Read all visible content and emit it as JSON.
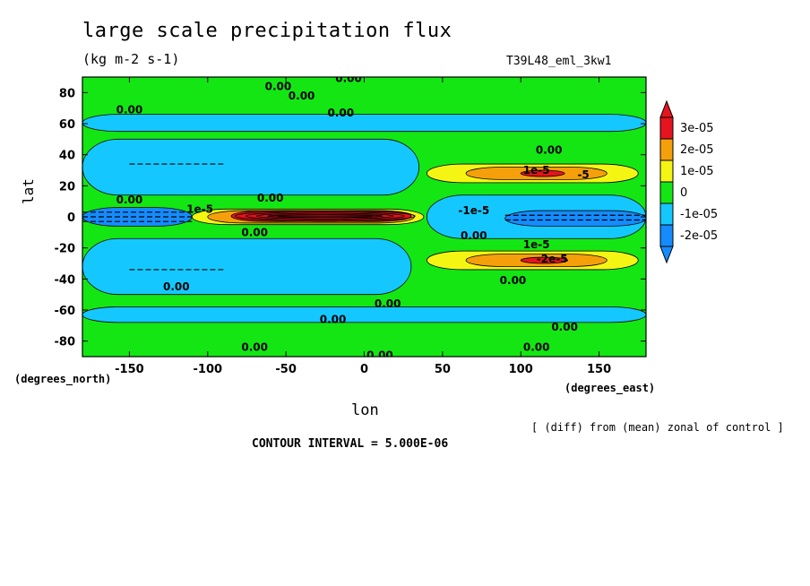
{
  "chart_data": {
    "type": "heatmap",
    "title": "large scale precipitation flux",
    "units": "(kg m-2 s-1)",
    "experiment": "T39L48_eml_3kw1",
    "xlabel": "lon",
    "ylabel": "lat",
    "x_units": "(degrees_east)",
    "y_units": "(degrees_north)",
    "xlim": [
      -180,
      180
    ],
    "ylim": [
      -90,
      90
    ],
    "x_ticks": [
      "-150",
      "-100",
      "-50",
      "0",
      "50",
      "100",
      "150"
    ],
    "x_tick_values": [
      -150,
      -100,
      -50,
      0,
      50,
      100,
      150
    ],
    "y_ticks": [
      "80",
      "60",
      "40",
      "20",
      "0",
      "-20",
      "-40",
      "-60",
      "-80"
    ],
    "y_tick_values": [
      80,
      60,
      40,
      20,
      0,
      -20,
      -40,
      -60,
      -80
    ],
    "diff_note": "[ (diff) from (mean) zonal of control ]",
    "contour_interval": "CONTOUR INTERVAL = 5.000E-06",
    "colorbar": {
      "labels": [
        "3e-05",
        "2e-05",
        "1e-05",
        "0",
        "-1e-05",
        "-2e-05"
      ],
      "levels": [
        3e-05,
        2e-05,
        1e-05,
        0,
        -1e-05,
        -2e-05
      ],
      "colors": [
        "#e6141e",
        "#f5a00a",
        "#f5f514",
        "#14e614",
        "#14c8ff",
        "#148cff"
      ]
    },
    "field_colors": {
      "green": "#14e614",
      "lightblue": "#14c8ff",
      "blue": "#148cff",
      "yellow": "#f5f514",
      "orange": "#f5a00a",
      "red": "#e6141e"
    },
    "regions": [
      {
        "level": "lightblue",
        "lon": [
          -180,
          180
        ],
        "lat": [
          -68,
          -58
        ]
      },
      {
        "level": "lightblue",
        "lon": [
          -180,
          30
        ],
        "lat": [
          -50,
          -14
        ]
      },
      {
        "level": "lightblue",
        "lon": [
          -180,
          35
        ],
        "lat": [
          14,
          50
        ]
      },
      {
        "level": "lightblue",
        "lon": [
          -180,
          180
        ],
        "lat": [
          55,
          66
        ]
      },
      {
        "level": "lightblue",
        "lon": [
          40,
          180
        ],
        "lat": [
          -14,
          14
        ]
      },
      {
        "level": "blue",
        "lon": [
          -180,
          -110
        ],
        "lat": [
          -6,
          6
        ]
      },
      {
        "level": "blue",
        "lon": [
          90,
          180
        ],
        "lat": [
          -6,
          4
        ]
      },
      {
        "level": "yellow",
        "lon": [
          -110,
          38
        ],
        "lat": [
          -5,
          5
        ]
      },
      {
        "level": "orange",
        "lon": [
          -100,
          32
        ],
        "lat": [
          -4,
          4
        ]
      },
      {
        "level": "red",
        "lon": [
          -85,
          30
        ],
        "lat": [
          -3,
          4
        ]
      },
      {
        "level": "yellow",
        "lon": [
          40,
          175
        ],
        "lat": [
          22,
          34
        ]
      },
      {
        "level": "orange",
        "lon": [
          65,
          155
        ],
        "lat": [
          24,
          32
        ]
      },
      {
        "level": "red",
        "lon": [
          100,
          128
        ],
        "lat": [
          26,
          30
        ]
      },
      {
        "level": "yellow",
        "lon": [
          40,
          175
        ],
        "lat": [
          -34,
          -22
        ]
      },
      {
        "level": "orange",
        "lon": [
          65,
          155
        ],
        "lat": [
          -32,
          -24
        ]
      },
      {
        "level": "red",
        "lon": [
          100,
          130
        ],
        "lat": [
          -30,
          -26
        ]
      }
    ],
    "contour_labels": [
      {
        "text": "0.00",
        "lon": -55,
        "lat": 84
      },
      {
        "text": "0.00",
        "lon": -10,
        "lat": 89
      },
      {
        "text": "0.00",
        "lon": -40,
        "lat": 78
      },
      {
        "text": "0.00",
        "lon": -150,
        "lat": 69
      },
      {
        "text": "0.00",
        "lon": -15,
        "lat": 67
      },
      {
        "text": "0.00",
        "lon": 118,
        "lat": 43
      },
      {
        "text": "1e-5",
        "lon": 110,
        "lat": 30
      },
      {
        "text": "-5",
        "lon": 140,
        "lat": 27
      },
      {
        "text": "0.00",
        "lon": -150,
        "lat": 11
      },
      {
        "text": "0.00",
        "lon": -60,
        "lat": 12
      },
      {
        "text": "1e-5",
        "lon": -105,
        "lat": 5
      },
      {
        "text": "-1e-5",
        "lon": 70,
        "lat": 4
      },
      {
        "text": "0.00",
        "lon": -70,
        "lat": -10
      },
      {
        "text": "0.00",
        "lon": 70,
        "lat": -12
      },
      {
        "text": "1e-5",
        "lon": 110,
        "lat": -18
      },
      {
        "text": "-2e-5",
        "lon": 120,
        "lat": -27
      },
      {
        "text": "0.00",
        "lon": -120,
        "lat": -45
      },
      {
        "text": "0.00",
        "lon": 95,
        "lat": -41
      },
      {
        "text": "0.00",
        "lon": 15,
        "lat": -56
      },
      {
        "text": "0.00",
        "lon": -20,
        "lat": -66
      },
      {
        "text": "0.00",
        "lon": 128,
        "lat": -71
      },
      {
        "text": "0.00",
        "lon": -70,
        "lat": -84
      },
      {
        "text": "0.00",
        "lon": 110,
        "lat": -84
      },
      {
        "text": "0.00",
        "lon": 10,
        "lat": -89
      }
    ]
  }
}
